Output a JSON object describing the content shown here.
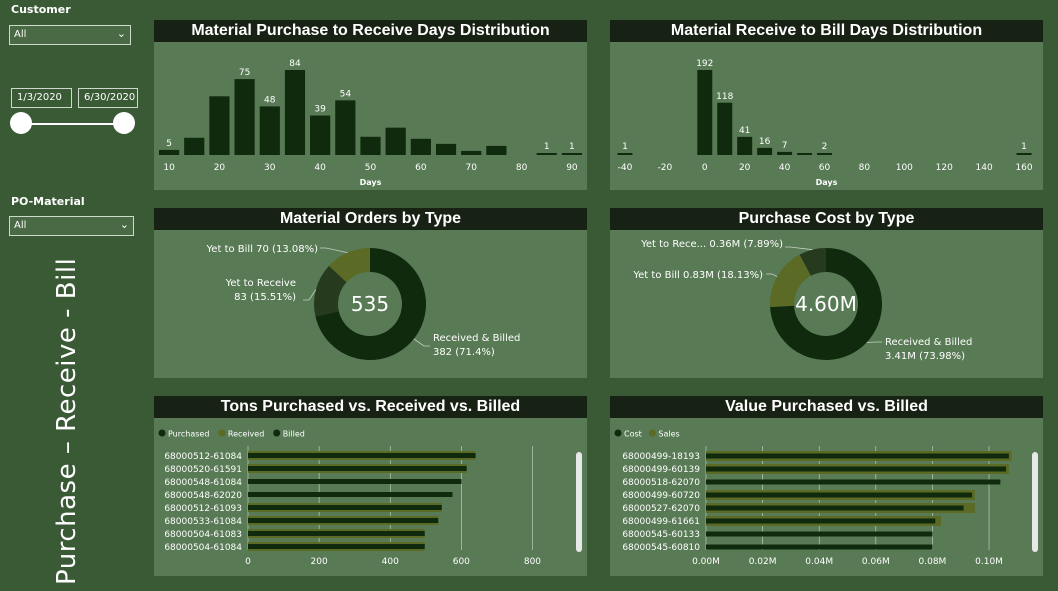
{
  "filters": {
    "customer": {
      "label": "Customer",
      "value": "All"
    },
    "date_start": "1/3/2020",
    "date_end": "6/30/2020",
    "po_material": {
      "label": "PO-Material",
      "value": "All"
    }
  },
  "side_title": "Purchase – Receive - Bill",
  "colors": {
    "background": "#3a5a36",
    "panel": "#587a55",
    "title_bar": "#182214",
    "dark_series": "#0f2a0c",
    "olive_series": "#5b6a24",
    "mid_series": "#263b1d"
  },
  "chart_data": [
    {
      "type": "bar",
      "title": "Material Purchase to Receive Days Distribution",
      "xlabel": "Days",
      "xlim": [
        8,
        92
      ],
      "xticks": [
        10,
        20,
        30,
        40,
        50,
        60,
        70,
        80,
        90
      ],
      "bin_width": 5,
      "bars": [
        {
          "x": 10,
          "value": 5,
          "label": "5"
        },
        {
          "x": 15,
          "value": 17
        },
        {
          "x": 20,
          "value": 58
        },
        {
          "x": 25,
          "value": 75,
          "label": "75"
        },
        {
          "x": 30,
          "value": 48,
          "label": "48"
        },
        {
          "x": 35,
          "value": 84,
          "label": "84"
        },
        {
          "x": 40,
          "value": 39,
          "label": "39"
        },
        {
          "x": 45,
          "value": 54,
          "label": "54"
        },
        {
          "x": 50,
          "value": 18
        },
        {
          "x": 55,
          "value": 27
        },
        {
          "x": 60,
          "value": 16
        },
        {
          "x": 65,
          "value": 11
        },
        {
          "x": 70,
          "value": 4
        },
        {
          "x": 75,
          "value": 9
        },
        {
          "x": 85,
          "value": 1,
          "label": "1"
        },
        {
          "x": 90,
          "value": 1,
          "label": "1"
        }
      ]
    },
    {
      "type": "bar",
      "title": "Material Receive to Bill Days Distribution",
      "xlabel": "Days",
      "xlim": [
        -45,
        167
      ],
      "xticks": [
        -40,
        -20,
        0,
        20,
        40,
        60,
        80,
        100,
        120,
        140,
        160
      ],
      "bin_width": 10,
      "bars": [
        {
          "x": -40,
          "value": 1,
          "label": "1"
        },
        {
          "x": 0,
          "value": 192,
          "label": "192"
        },
        {
          "x": 10,
          "value": 118,
          "label": "118"
        },
        {
          "x": 20,
          "value": 41,
          "label": "41"
        },
        {
          "x": 30,
          "value": 16,
          "label": "16"
        },
        {
          "x": 40,
          "value": 7,
          "label": "7"
        },
        {
          "x": 50,
          "value": 3
        },
        {
          "x": 60,
          "value": 2,
          "label": "2"
        },
        {
          "x": 160,
          "value": 1,
          "label": "1"
        }
      ]
    },
    {
      "type": "pie",
      "title": "Material Orders by Type",
      "center_label": "535",
      "slices": [
        {
          "name": "Received & Billed",
          "value": 382,
          "pct": "71.4%",
          "label_lines": [
            "Received & Billed",
            "382 (71.4%)"
          ],
          "color": "#0f2a0c"
        },
        {
          "name": "Yet to Receive",
          "value": 83,
          "pct": "15.51%",
          "label_lines": [
            "Yet to Receive",
            "83 (15.51%)"
          ],
          "color": "#263b1d"
        },
        {
          "name": "Yet to Bill",
          "value": 70,
          "pct": "13.08%",
          "label_lines": [
            "Yet to Bill 70 (13.08%)"
          ],
          "color": "#5b6a24"
        }
      ]
    },
    {
      "type": "pie",
      "title": "Purchase Cost by Type",
      "center_label": "4.60M",
      "slices": [
        {
          "name": "Received & Billed",
          "value": 3.41,
          "pct": "73.98%",
          "label_lines": [
            "Received & Billed",
            "3.41M (73.98%)"
          ],
          "color": "#0f2a0c"
        },
        {
          "name": "Yet to Bill",
          "value": 0.83,
          "pct": "18.13%",
          "label_lines": [
            "Yet to Bill 0.83M (18.13%)"
          ],
          "color": "#5b6a24"
        },
        {
          "name": "Yet to Receive",
          "value": 0.36,
          "pct": "7.89%",
          "label_lines": [
            "Yet to Rece... 0.36M (7.89%)"
          ],
          "color": "#263b1d"
        }
      ]
    },
    {
      "type": "bar",
      "orientation": "horizontal",
      "title": "Tons Purchased vs. Received vs. Billed",
      "legend": [
        {
          "name": "Purchased",
          "color": "#0f2a0c"
        },
        {
          "name": "Received",
          "color": "#5b6a24"
        },
        {
          "name": "Billed",
          "color": "#0f2a0c"
        }
      ],
      "categories": [
        "68000512-61084",
        "68000520-61591",
        "68000548-61084",
        "68000548-62020",
        "68000512-61093",
        "68000533-61084",
        "68000504-61083",
        "68000504-61084"
      ],
      "series": [
        {
          "name": "Purchased",
          "values": [
            640,
            615,
            600,
            575,
            545,
            535,
            497,
            497
          ]
        },
        {
          "name": "Received",
          "values": [
            640,
            615,
            0,
            0,
            545,
            535,
            497,
            497
          ]
        },
        {
          "name": "Billed",
          "values": [
            630,
            610,
            600,
            575,
            540,
            530,
            495,
            495
          ]
        }
      ],
      "xlim": [
        0,
        900
      ],
      "xticks": [
        0,
        200,
        400,
        600,
        800
      ],
      "xtick_labels": [
        "0",
        "200",
        "400",
        "600",
        "800"
      ]
    },
    {
      "type": "bar",
      "orientation": "horizontal",
      "title": "Value Purchased vs. Billed",
      "legend": [
        {
          "name": "Cost",
          "color": "#0f2a0c"
        },
        {
          "name": "Sales",
          "color": "#5b6a24"
        }
      ],
      "categories": [
        "68000499-18193",
        "68000499-60139",
        "68000518-62070",
        "68000499-60720",
        "68000527-62070",
        "68000499-61661",
        "68000545-60133",
        "68000545-60810"
      ],
      "series": [
        {
          "name": "Cost",
          "values": [
            0.107,
            0.106,
            0.104,
            0.094,
            0.091,
            0.081,
            0.08,
            0.08
          ]
        },
        {
          "name": "Sales",
          "values": [
            0.108,
            0.107,
            0.0,
            0.095,
            0.095,
            0.083,
            0.0,
            0.0
          ]
        }
      ],
      "xlim": [
        0,
        0.112
      ],
      "xticks": [
        0,
        0.02,
        0.04,
        0.06,
        0.08,
        0.1
      ],
      "xtick_labels": [
        "0.00M",
        "0.02M",
        "0.04M",
        "0.06M",
        "0.08M",
        "0.10M"
      ]
    }
  ]
}
